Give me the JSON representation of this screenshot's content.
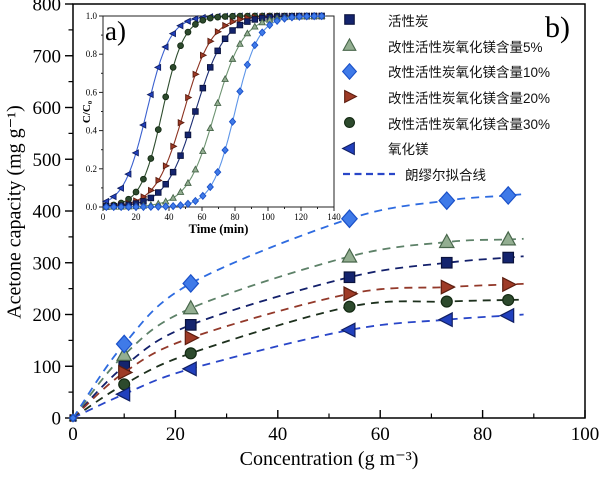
{
  "figure": {
    "panel_label_inset": "a)",
    "panel_label_main": "b)",
    "background_color": "#ffffff",
    "axis_color": "#000000"
  },
  "chart_data": [
    {
      "type": "scatter",
      "title": "",
      "xlabel": "Concentration (g m⁻³)",
      "ylabel": "Acetone capacity (mg g⁻¹)",
      "xlim": [
        0,
        100
      ],
      "ylim": [
        0,
        800
      ],
      "xticks": [
        0,
        20,
        40,
        60,
        80,
        100
      ],
      "yticks": [
        0,
        100,
        200,
        300,
        400,
        500,
        600,
        700,
        800
      ],
      "grid": false,
      "legend_position": "top-right",
      "x": [
        0,
        10,
        23,
        54,
        73,
        85
      ],
      "series": [
        {
          "name": "活性炭",
          "marker": "square",
          "fill": "#14246e",
          "edge": "#0a123c",
          "line": "#13206b",
          "values": [
            0,
            100,
            180,
            272,
            300,
            310
          ]
        },
        {
          "name": "改性活性炭氧化镁含量5%",
          "marker": "triangle-up",
          "fill": "#93ae91",
          "edge": "#47664a",
          "line": "#5d8168",
          "values": [
            0,
            122,
            212,
            312,
            340,
            345
          ]
        },
        {
          "name": "改性活性炭氧化镁含量10%",
          "marker": "diamond",
          "fill": "#3f7ae8",
          "edge": "#1a50c8",
          "line": "#2e6be0",
          "values": [
            0,
            143,
            260,
            385,
            420,
            430
          ]
        },
        {
          "name": "改性活性炭氧化镁含量20%",
          "marker": "triangle-right",
          "fill": "#9e3b27",
          "edge": "#5c1d0f",
          "line": "#93392a",
          "values": [
            0,
            88,
            155,
            240,
            253,
            258
          ]
        },
        {
          "name": "改性活性炭氧化镁含量30%",
          "marker": "circle",
          "fill": "#2d4a2d",
          "edge": "#142a13",
          "line": "#1d301d",
          "values": [
            0,
            65,
            125,
            215,
            225,
            228
          ]
        },
        {
          "name": "氧化镁",
          "marker": "triangle-left",
          "fill": "#2140bd",
          "edge": "#101f63",
          "line": "#2946c8",
          "values": [
            0,
            46,
            95,
            170,
            190,
            198
          ]
        }
      ],
      "fit_line": {
        "label": "朗缪尔拟合线",
        "color": "#2946c8",
        "style": "dashed"
      }
    },
    {
      "type": "line",
      "title": "",
      "xlabel": "Time (min)",
      "ylabel": "C/C₀",
      "xlim": [
        0,
        140
      ],
      "ylim": [
        0.0,
        1.0
      ],
      "xticks": [
        0,
        20,
        40,
        60,
        80,
        100,
        120,
        140
      ],
      "yticks": [
        "0.0",
        "0.2",
        "0.4",
        "0.6",
        "0.8",
        "1.0"
      ],
      "grid": false,
      "curve_model": "logistic: C/C0 = 1/(1+exp(-(t-t50)/k))",
      "t_range": [
        2,
        134
      ],
      "marker_step": 4.5,
      "series": [
        {
          "name": "氧化镁",
          "marker": "triangle-left",
          "t50": 26.5,
          "k": 7.0,
          "line": "#3a60cf",
          "fill": "#2140bd",
          "edge": "#101f63"
        },
        {
          "name": "改性活性炭氧化镁含量30%",
          "marker": "circle",
          "t50": 36,
          "k": 6.5,
          "line": "#2e4d2e",
          "fill": "#2d4a2d",
          "edge": "#142a13"
        },
        {
          "name": "改性活性炭氧化镁含量20%",
          "marker": "triangle-right",
          "t50": 49,
          "k": 8.5,
          "line": "#8c3220",
          "fill": "#9e3b27",
          "edge": "#5c1d0f"
        },
        {
          "name": "活性炭",
          "marker": "square",
          "t50": 56,
          "k": 9.0,
          "line": "#1b2d73",
          "fill": "#14246e",
          "edge": "#0a123c"
        },
        {
          "name": "改性活性炭氧化镁含量5%",
          "marker": "triangle-up",
          "t50": 68,
          "k": 8.5,
          "line": "#6d9371",
          "fill": "#93ae91",
          "edge": "#47664a"
        },
        {
          "name": "改性活性炭氧化镁含量10%",
          "marker": "diamond",
          "t50": 80,
          "k": 7.0,
          "line": "#5d95e8",
          "fill": "#3f7ae8",
          "edge": "#1a50c8"
        }
      ]
    }
  ]
}
